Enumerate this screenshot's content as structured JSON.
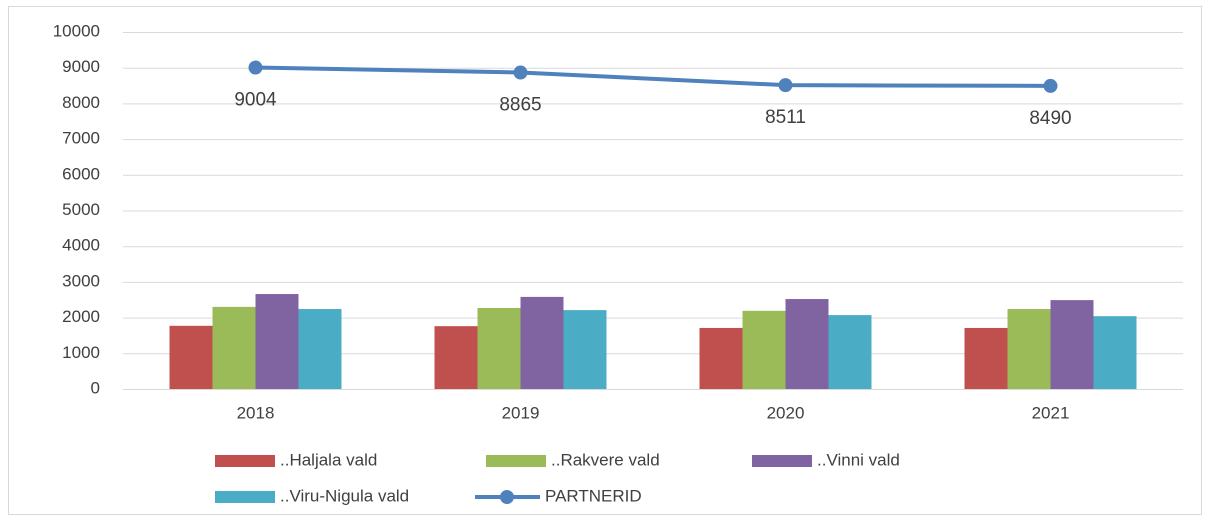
{
  "chart_data": {
    "type": "bar",
    "categories": [
      "2018",
      "2019",
      "2020",
      "2021"
    ],
    "ylim": [
      0,
      10000
    ],
    "yticks": [
      0,
      1000,
      2000,
      3000,
      4000,
      5000,
      6000,
      7000,
      8000,
      9000,
      10000
    ],
    "grid": true,
    "legend": "bottom",
    "series": [
      {
        "name": "..Haljala vald",
        "color": "#c0504d",
        "type": "bar",
        "values": [
          1770,
          1760,
          1710,
          1710
        ]
      },
      {
        "name": "..Rakvere vald",
        "color": "#9bbb59",
        "type": "bar",
        "values": [
          2300,
          2270,
          2190,
          2240
        ]
      },
      {
        "name": "..Vinni vald",
        "color": "#8064a2",
        "type": "bar",
        "values": [
          2660,
          2580,
          2520,
          2490
        ]
      },
      {
        "name": "..Viru-Nigula vald",
        "color": "#4bacc6",
        "type": "bar",
        "values": [
          2240,
          2210,
          2070,
          2040
        ]
      },
      {
        "name": "PARTNERID",
        "color": "#4f81bd",
        "type": "line",
        "values": [
          9004,
          8865,
          8511,
          8490
        ]
      }
    ]
  }
}
